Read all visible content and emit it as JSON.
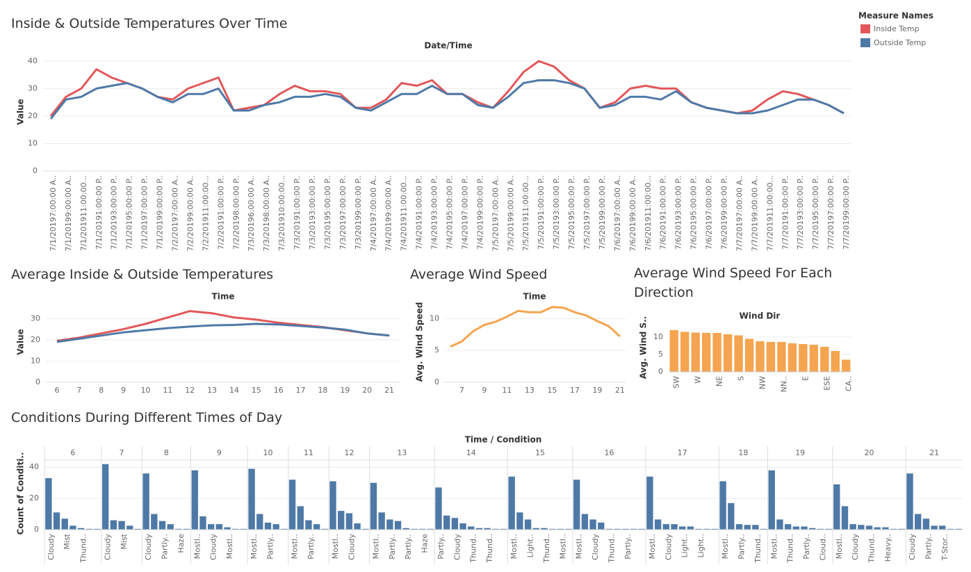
{
  "chart_data": [
    {
      "type": "line",
      "title": "Inside & Outside Temperatures Over Time",
      "x_label": "Date/Time",
      "y_label": "Value",
      "legend": {
        "title": "Measure Names",
        "position": "top-right"
      },
      "categories": [
        "7/1/20197:00:00 A..",
        "7/1/20199:00:00 A..",
        "7/1/201911:00:00...",
        "7/1/20191:00:00 P..",
        "7/1/20193:00:00 P..",
        "7/1/20195:00:00 P..",
        "7/1/20197:00:00 P..",
        "7/1/20199:00:00 P..",
        "7/2/20197:00:00 A..",
        "7/2/20199:00:00 A..",
        "7/2/201911:00:00...",
        "7/2/20191:00:00 P..",
        "7/2/20198:00:00 P..",
        "7/3/20196:00:00 A..",
        "7/3/20198:00:00 A..",
        "7/3/201910:00:00...",
        "7/3/20191:00:00 P..",
        "7/3/20193:00:00 P..",
        "7/3/20195:00:00 P..",
        "7/3/20197:00:00 P..",
        "7/3/20199:00:00 P..",
        "7/4/20197:00:00 A..",
        "7/4/20199:00:00 A..",
        "7/4/201911:00:00...",
        "7/4/20191:00:00 P..",
        "7/4/20193:00:00 P..",
        "7/4/20195:00:00 P..",
        "7/4/20197:00:00 P..",
        "7/4/20199:00:00 P..",
        "7/5/20197:00:00 A..",
        "7/5/20199:00:00 A..",
        "7/5/201911:00:00...",
        "7/5/20191:00:00 P..",
        "7/5/20193:00:00 P..",
        "7/5/20195:00:00 P..",
        "7/5/20197:00:00 P..",
        "7/5/20199:00:00 P..",
        "7/6/20197:00:00 A..",
        "7/6/20199:00:00 A..",
        "7/6/201911:00:00...",
        "7/6/20191:00:00 P..",
        "7/6/20193:00:00 P..",
        "7/6/20195:00:00 P..",
        "7/6/20197:00:00 P..",
        "7/6/20199:00:00 P..",
        "7/7/20197:00:00 A..",
        "7/7/20199:00:00 A..",
        "7/7/201911:00:00...",
        "7/7/20191:00:00 P..",
        "7/7/20193:00:00 P..",
        "7/7/20195:00:00 P..",
        "7/7/20197:00:00 P..",
        "7/7/20199:00:00 P.."
      ],
      "series": [
        {
          "name": "Inside Temp",
          "color": "#e15759",
          "values": [
            20,
            27,
            30,
            37,
            34,
            32,
            30,
            27,
            26,
            30,
            32,
            34,
            22,
            23,
            24,
            28,
            31,
            29,
            29,
            28,
            23,
            23,
            26,
            32,
            31,
            33,
            28,
            28,
            25,
            23,
            29,
            36,
            40,
            38,
            33,
            30,
            23,
            25,
            30,
            31,
            30,
            30,
            25,
            23,
            22,
            21,
            22,
            26,
            29,
            28,
            26,
            24,
            21
          ]
        },
        {
          "name": "Outside Temp",
          "color": "#4e79a7",
          "values": [
            19,
            26,
            27,
            30,
            31,
            32,
            30,
            27,
            25,
            28,
            28,
            30,
            22,
            22,
            24,
            25,
            27,
            27,
            28,
            27,
            23,
            22,
            25,
            28,
            28,
            31,
            28,
            28,
            24,
            23,
            27,
            32,
            33,
            33,
            32,
            30,
            23,
            24,
            27,
            27,
            26,
            29,
            25,
            23,
            22,
            21,
            21,
            22,
            24,
            26,
            26,
            24,
            21
          ]
        }
      ],
      "ylim": [
        0,
        43
      ],
      "yticks": [
        0,
        10,
        20,
        30,
        40
      ],
      "grid": true
    },
    {
      "type": "line",
      "title": "Average Inside & Outside Temperatures",
      "x_label": "Time",
      "y_label": "Value",
      "x": [
        6,
        7,
        8,
        9,
        10,
        11,
        12,
        13,
        14,
        15,
        16,
        17,
        18,
        19,
        20,
        21
      ],
      "series": [
        {
          "name": "Inside Temp",
          "color": "#e15759",
          "values": [
            19.5,
            21,
            23,
            25,
            27.5,
            30.5,
            33.5,
            32.5,
            30.5,
            29.5,
            28,
            27,
            26,
            24.5,
            23,
            22
          ]
        },
        {
          "name": "Outside Temp",
          "color": "#4e79a7",
          "values": [
            19,
            20.5,
            22,
            23.5,
            24.5,
            25.5,
            26.2,
            26.8,
            27,
            27.5,
            27.2,
            26.5,
            25.8,
            24.8,
            23,
            22
          ]
        }
      ],
      "xlim": [
        5.5,
        21.5
      ],
      "xticks": [
        6,
        7,
        8,
        9,
        10,
        11,
        12,
        13,
        14,
        15,
        16,
        17,
        18,
        19,
        20,
        21
      ],
      "ylim": [
        0,
        36
      ],
      "yticks": [
        0,
        10,
        20,
        30
      ],
      "grid": true
    },
    {
      "type": "line",
      "title": "Average Wind Speed",
      "x_label": "Time",
      "y_label": "Avg. Wind Speed",
      "x": [
        6,
        7,
        8,
        9,
        10,
        11,
        12,
        13,
        14,
        15,
        16,
        17,
        18,
        19,
        20,
        21
      ],
      "series": [
        {
          "name": "Avg. Wind Speed",
          "color": "#f5a44f",
          "values": [
            5.6,
            6.4,
            8,
            9,
            9.5,
            10.3,
            11.2,
            11,
            11,
            11.8,
            11.7,
            11,
            10.5,
            9.6,
            8.8,
            7.2
          ]
        }
      ],
      "xlim": [
        5.5,
        21.5
      ],
      "xticks": [
        7,
        9,
        11,
        13,
        15,
        17,
        19,
        21
      ],
      "ylim": [
        0,
        12
      ],
      "yticks": [
        0,
        5,
        10
      ],
      "grid": true
    },
    {
      "type": "bar",
      "title": "Average Wind Speed For Each Direction",
      "x_label": "Wind Dir",
      "y_label": "Avg. Wind S..",
      "categories": [
        "SW",
        null,
        "W",
        null,
        "NE",
        null,
        "S",
        null,
        "NW",
        null,
        "NN..",
        null,
        "E",
        null,
        "ESE",
        null,
        "CA.."
      ],
      "values": [
        12,
        11.5,
        11.3,
        11.2,
        11.2,
        10.8,
        10.5,
        9.5,
        8.8,
        8.6,
        8.6,
        8.2,
        8,
        7.8,
        7.2,
        6,
        3.5
      ],
      "color": "#f5a44f",
      "ylim": [
        0,
        13
      ],
      "yticks": [
        0,
        5,
        10
      ],
      "grid": true
    },
    {
      "type": "bar",
      "title": "Conditions During Different Times of Day",
      "x_label": "Time / Condition",
      "y_label": "Count of Conditi..",
      "color": "#4e79a7",
      "ylim": [
        0,
        45
      ],
      "yticks": [
        0,
        20,
        40
      ],
      "grid": true,
      "panels": [
        {
          "label": "6",
          "categories": [
            "Cloudy",
            null,
            "Mist",
            null,
            "Thund..",
            null,
            null
          ],
          "values": [
            33,
            11,
            7,
            2.5,
            1,
            0.5,
            0.5
          ]
        },
        {
          "label": "7",
          "categories": [
            "Cloudy",
            null,
            "Mist",
            null,
            null
          ],
          "values": [
            42,
            6,
            5.5,
            2.5,
            0.5
          ]
        },
        {
          "label": "8",
          "categories": [
            "Cloudy",
            null,
            "Partly..",
            null,
            "Haze",
            null
          ],
          "values": [
            36,
            10,
            5.5,
            3.5,
            0.5,
            0.5
          ]
        },
        {
          "label": "9",
          "categories": [
            "Mostl..",
            null,
            "Cloudy",
            null,
            "Mostl..",
            null,
            null
          ],
          "values": [
            38,
            8.5,
            3.5,
            3.5,
            1.5,
            0.5,
            0.5
          ]
        },
        {
          "label": "10",
          "categories": [
            "Mostl..",
            null,
            "Partly..",
            null,
            null
          ],
          "values": [
            39,
            10,
            4.5,
            3.5,
            0.5
          ]
        },
        {
          "label": "11",
          "categories": [
            "Mostl..",
            null,
            "Partly..",
            null,
            null
          ],
          "values": [
            32,
            15,
            6,
            3.5,
            0.5
          ]
        },
        {
          "label": "12",
          "categories": [
            "Mostl..",
            null,
            "Cloudy",
            null,
            null
          ],
          "values": [
            31,
            12,
            10.5,
            4,
            0.5
          ]
        },
        {
          "label": "13",
          "categories": [
            "Mostl..",
            null,
            "Partly..",
            null,
            "Partly..",
            null,
            "Haze",
            null
          ],
          "values": [
            30,
            11,
            6.5,
            5.5,
            1,
            0.5,
            0.5,
            0.5
          ]
        },
        {
          "label": "14",
          "categories": [
            "Partly..",
            null,
            "Cloudy",
            null,
            "Thund..",
            null,
            "Thund..",
            null,
            null
          ],
          "values": [
            27,
            9,
            7.5,
            4,
            2,
            1,
            1,
            0.5,
            0.5
          ]
        },
        {
          "label": "15",
          "categories": [
            "Mostl..",
            null,
            "Light..",
            null,
            "Thund..",
            null,
            "Mostl..",
            null
          ],
          "values": [
            34,
            11,
            6.5,
            1,
            1,
            0.5,
            0.5,
            0.5
          ]
        },
        {
          "label": "16",
          "categories": [
            "Mostl..",
            null,
            "Cloudy",
            null,
            "Thund..",
            null,
            "Partly..",
            null,
            null
          ],
          "values": [
            32,
            10,
            6.5,
            4.5,
            0.5,
            0.5,
            0.5,
            0.5,
            0.5
          ]
        },
        {
          "label": "17",
          "categories": [
            "Mostl..",
            null,
            "Cloudy",
            null,
            "Light..",
            null,
            "Light..",
            null,
            null
          ],
          "values": [
            34,
            6.5,
            3.5,
            3.5,
            2,
            2,
            0.5,
            0.5,
            0.5
          ]
        },
        {
          "label": "18",
          "categories": [
            "Mostl..",
            null,
            "Partly..",
            null,
            "Thund..",
            null
          ],
          "values": [
            31,
            17,
            3.5,
            3,
            3,
            0.5
          ]
        },
        {
          "label": "19",
          "categories": [
            "Mostl..",
            null,
            "Thund..",
            null,
            "Partly..",
            null,
            "Cloud..",
            null
          ],
          "values": [
            38,
            6.5,
            3.5,
            2,
            2,
            1,
            0.5,
            0.5
          ]
        },
        {
          "label": "20",
          "categories": [
            "Mostl..",
            null,
            "Cloudy",
            null,
            "Thund..",
            null,
            "Heavy..",
            null,
            null
          ],
          "values": [
            29,
            15,
            3.5,
            3,
            2.5,
            1.5,
            1.5,
            0.5,
            0.5
          ]
        },
        {
          "label": "21",
          "categories": [
            "Cloudy",
            null,
            "Partly..",
            null,
            "T-Stor..",
            null,
            null
          ],
          "values": [
            36,
            10,
            7,
            2.5,
            2.5,
            0.5,
            0.5
          ]
        }
      ]
    }
  ]
}
